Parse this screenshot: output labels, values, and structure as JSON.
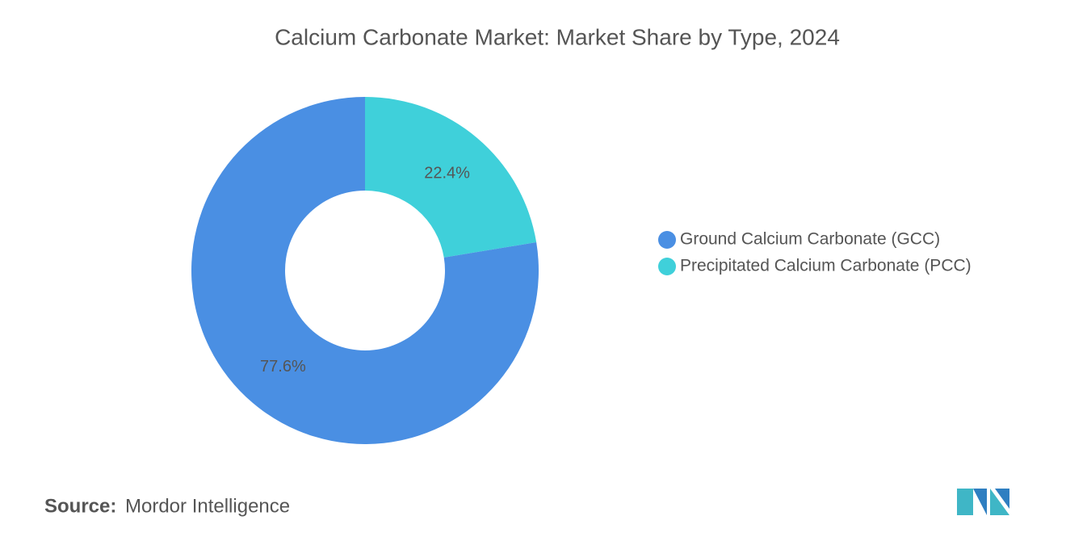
{
  "chart_data": {
    "type": "pie",
    "title": "Calcium Carbonate Market: Market Share by Type, 2024",
    "categories": [
      "Ground Calcium Carbonate (GCC)",
      "Precipitated Calcium Carbonate (PCC)"
    ],
    "values": [
      77.6,
      22.4
    ],
    "value_labels": [
      "77.6%",
      "22.4%"
    ],
    "colors": [
      "#4a8fe3",
      "#3fd0da"
    ],
    "donut": true,
    "legend": "right",
    "source_label": "Source:",
    "source": "Mordor Intelligence"
  }
}
